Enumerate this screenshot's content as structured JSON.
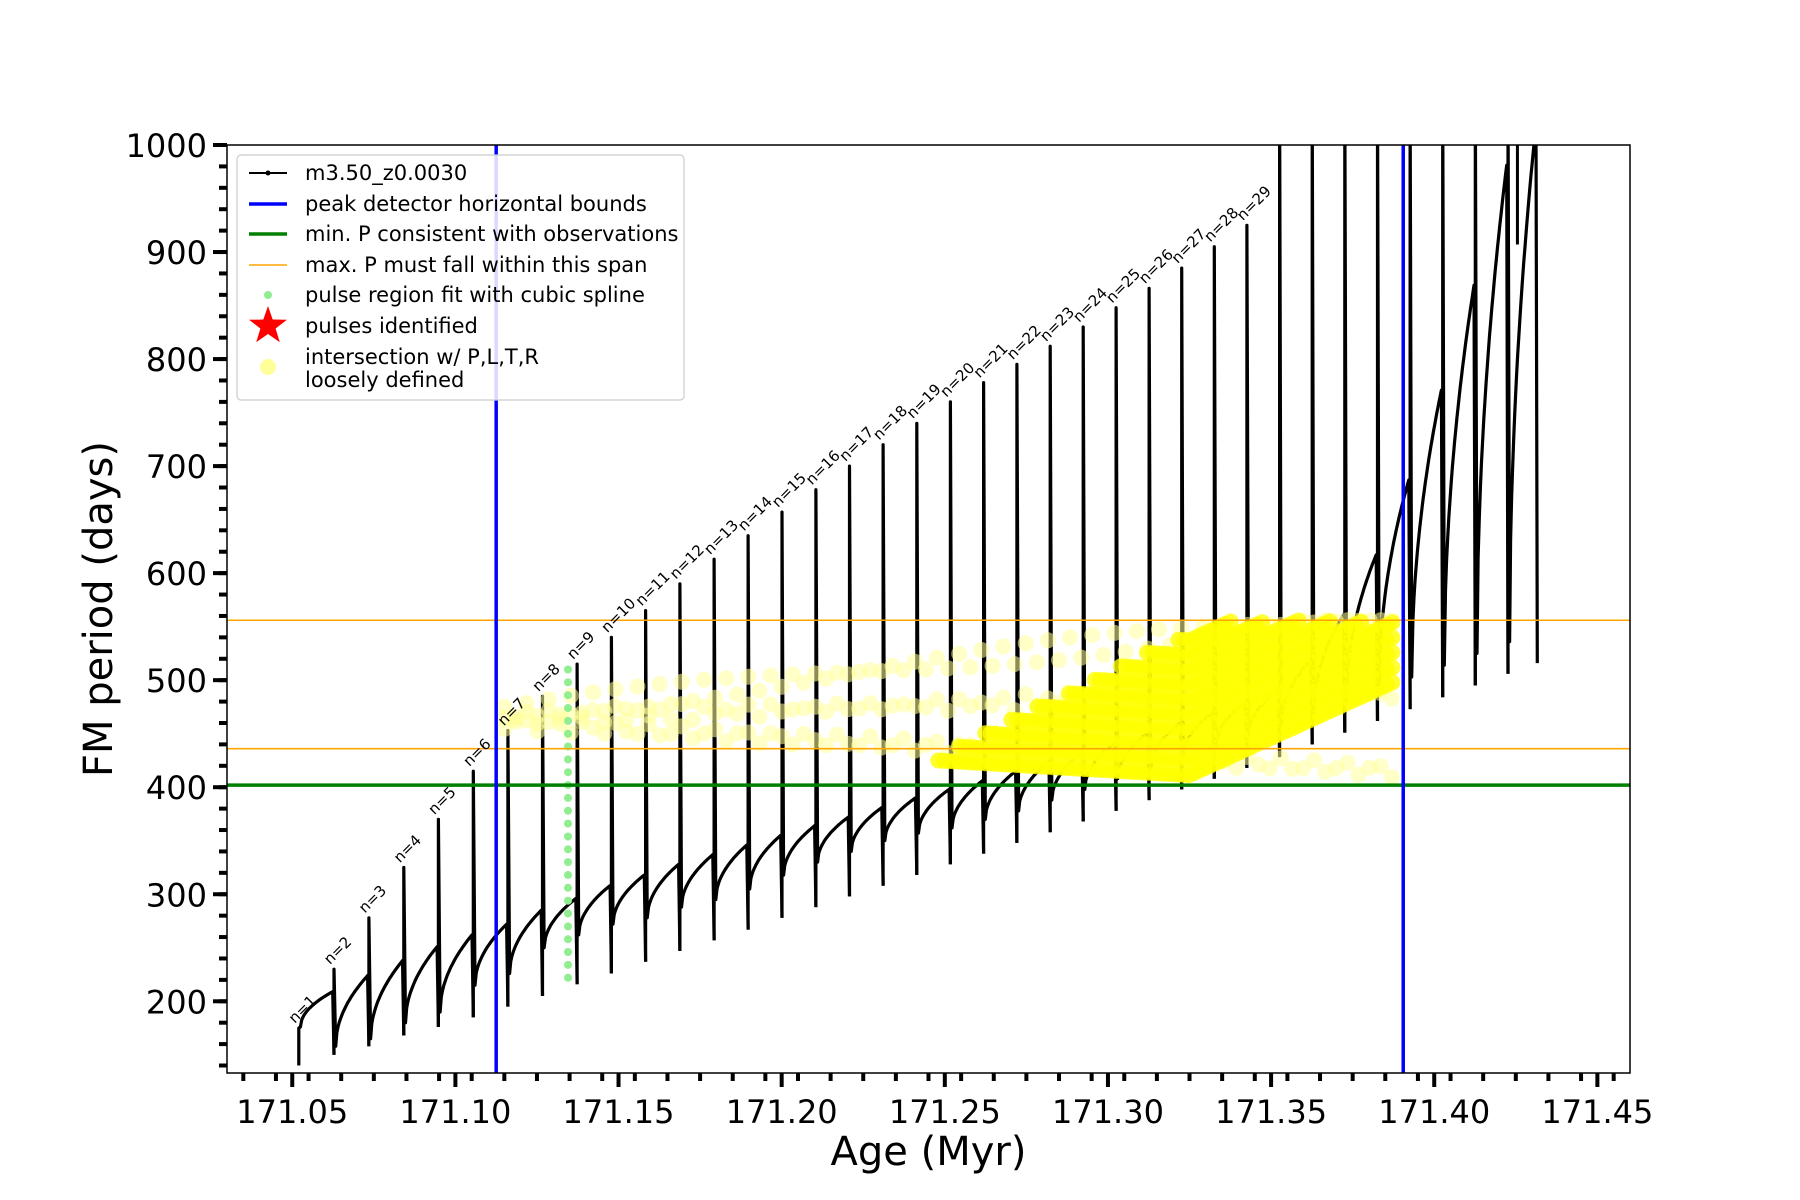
{
  "chart_data": {
    "type": "line",
    "title": "",
    "xlabel": "Age (Myr)",
    "ylabel": "FM period (days)",
    "xlim": [
      171.03,
      171.46
    ],
    "ylim": [
      133,
      1000
    ],
    "x_ticks": [
      "171.05",
      "171.10",
      "171.15",
      "171.20",
      "171.25",
      "171.30",
      "171.35",
      "171.40",
      "171.45"
    ],
    "y_ticks": [
      "200",
      "300",
      "400",
      "500",
      "600",
      "700",
      "800",
      "900",
      "1000"
    ],
    "grid": false,
    "legend": {
      "placement": "top-left",
      "entries": [
        {
          "label": "m3.50_z0.0030",
          "color": "#000000",
          "marker": "line-dot"
        },
        {
          "label": "peak detector horizontal bounds",
          "color": "#0000ff",
          "marker": "line"
        },
        {
          "label": "min. P consistent with observations",
          "color": "#008000",
          "marker": "line"
        },
        {
          "label": "max. P must fall within this span",
          "color": "#ffa500",
          "marker": "thin-line"
        },
        {
          "label": "pulse region fit with cubic spline",
          "color": "#90ee90",
          "marker": "dot"
        },
        {
          "label": "pulses identified",
          "color": "#ff0000",
          "marker": "star"
        },
        {
          "label": "intersection w/ P,L,T,R",
          "label2": "loosely defined",
          "color": "#ffff99",
          "marker": "circle"
        }
      ]
    },
    "vertical_lines": [
      {
        "name": "peak detector horizontal bounds",
        "x": 171.1125,
        "color": "#0000ff"
      },
      {
        "name": "peak detector horizontal bounds",
        "x": 171.3905,
        "color": "#0000ff"
      }
    ],
    "horizontal_lines": [
      {
        "name": "min. P consistent with observations",
        "y": 402,
        "color": "#008000"
      },
      {
        "name": "max. P must fall within this span",
        "y": 436,
        "color": "#ffa500"
      },
      {
        "name": "max. P must fall within this span",
        "y": 556,
        "color": "#ffa500"
      }
    ],
    "pulses": [
      {
        "label": "n=1",
        "x": 171.052,
        "min": 140,
        "top": 175,
        "bottom": 176,
        "end": 209
      },
      {
        "label": "n=2",
        "x": 171.0628,
        "min": 150,
        "top": 230,
        "bottom": 158,
        "end": 224
      },
      {
        "label": "n=3",
        "x": 171.0735,
        "min": 158,
        "top": 278,
        "bottom": 165,
        "end": 238
      },
      {
        "label": "n=4",
        "x": 171.0842,
        "min": 168,
        "top": 325,
        "bottom": 180,
        "end": 251
      },
      {
        "label": "n=5",
        "x": 171.0948,
        "min": 176,
        "top": 370,
        "bottom": 190,
        "end": 262
      },
      {
        "label": "n=6",
        "x": 171.1055,
        "min": 185,
        "top": 415,
        "bottom": 215,
        "end": 272
      },
      {
        "label": "n=7",
        "x": 171.1161,
        "min": 195,
        "top": 453,
        "bottom": 226,
        "end": 285
      },
      {
        "label": "n=8",
        "x": 171.1267,
        "min": 205,
        "top": 485,
        "bottom": 250,
        "end": 296
      },
      {
        "label": "n=9",
        "x": 171.1373,
        "min": 216,
        "top": 515,
        "bottom": 262,
        "end": 308
      },
      {
        "label": "n=10",
        "x": 171.1478,
        "min": 226,
        "top": 540,
        "bottom": 272,
        "end": 318
      },
      {
        "label": "n=11",
        "x": 171.1583,
        "min": 237,
        "top": 565,
        "bottom": 278,
        "end": 328
      },
      {
        "label": "n=12",
        "x": 171.1688,
        "min": 247,
        "top": 590,
        "bottom": 288,
        "end": 337
      },
      {
        "label": "n=13",
        "x": 171.1793,
        "min": 257,
        "top": 613,
        "bottom": 295,
        "end": 346
      },
      {
        "label": "n=14",
        "x": 171.1897,
        "min": 267,
        "top": 635,
        "bottom": 305,
        "end": 355
      },
      {
        "label": "n=15",
        "x": 171.2001,
        "min": 278,
        "top": 657,
        "bottom": 318,
        "end": 364
      },
      {
        "label": "n=16",
        "x": 171.2105,
        "min": 288,
        "top": 678,
        "bottom": 330,
        "end": 372
      },
      {
        "label": "n=17",
        "x": 171.2208,
        "min": 298,
        "top": 700,
        "bottom": 340,
        "end": 381
      },
      {
        "label": "n=18",
        "x": 171.2311,
        "min": 308,
        "top": 720,
        "bottom": 350,
        "end": 390
      },
      {
        "label": "n=19",
        "x": 171.2414,
        "min": 318,
        "top": 740,
        "bottom": 357,
        "end": 398
      },
      {
        "label": "n=20",
        "x": 171.2517,
        "min": 328,
        "top": 760,
        "bottom": 362,
        "end": 406
      },
      {
        "label": "n=21",
        "x": 171.2619,
        "min": 338,
        "top": 778,
        "bottom": 370,
        "end": 415
      },
      {
        "label": "n=22",
        "x": 171.2721,
        "min": 348,
        "top": 795,
        "bottom": 378,
        "end": 424
      },
      {
        "label": "n=23",
        "x": 171.2823,
        "min": 358,
        "top": 812,
        "bottom": 388,
        "end": 433
      },
      {
        "label": "n=24",
        "x": 171.2924,
        "min": 368,
        "top": 830,
        "bottom": 398,
        "end": 442
      },
      {
        "label": "n=25",
        "x": 171.3025,
        "min": 378,
        "top": 848,
        "bottom": 408,
        "end": 451
      },
      {
        "label": "n=26",
        "x": 171.3126,
        "min": 388,
        "top": 866,
        "bottom": 418,
        "end": 460
      },
      {
        "label": "n=27",
        "x": 171.3226,
        "min": 398,
        "top": 885,
        "bottom": 428,
        "end": 470
      },
      {
        "label": "n=28",
        "x": 171.3326,
        "min": 408,
        "top": 905,
        "bottom": 438,
        "end": 480
      },
      {
        "label": "n=29",
        "x": 171.3426,
        "min": 418,
        "top": 925,
        "bottom": 448,
        "end": 491
      }
    ]
  }
}
